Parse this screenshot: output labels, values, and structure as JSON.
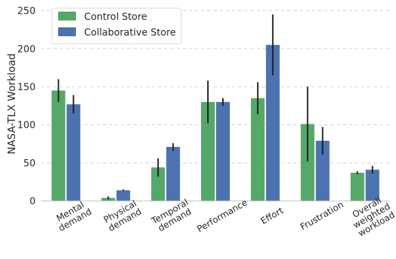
{
  "chart_data": {
    "type": "bar",
    "title": "",
    "xlabel": "",
    "ylabel": "NASA-TLX Workload",
    "ylim": [
      0,
      255
    ],
    "yticks": [
      0,
      50,
      100,
      150,
      200,
      250
    ],
    "grid": "horizontal",
    "legend_position": "top-left",
    "categories": [
      [
        "Mental",
        "demand"
      ],
      [
        "Physical",
        "demand"
      ],
      [
        "Temporal",
        "demand"
      ],
      [
        "Performance"
      ],
      [
        "Effort"
      ],
      [
        "Frustration"
      ],
      [
        "Overall",
        "weighted",
        "workload"
      ]
    ],
    "series": [
      {
        "name": "Control Store",
        "color": "#55a868",
        "values": [
          145,
          4,
          44,
          130,
          135,
          101,
          37
        ],
        "errors": [
          15,
          2,
          12,
          28,
          21,
          49,
          2
        ]
      },
      {
        "name": "Collaborative Store",
        "color": "#4c72b0",
        "values": [
          127,
          14,
          71,
          130,
          205,
          79,
          41
        ],
        "errors": [
          12,
          1,
          5,
          5,
          40,
          18,
          5
        ]
      }
    ]
  }
}
